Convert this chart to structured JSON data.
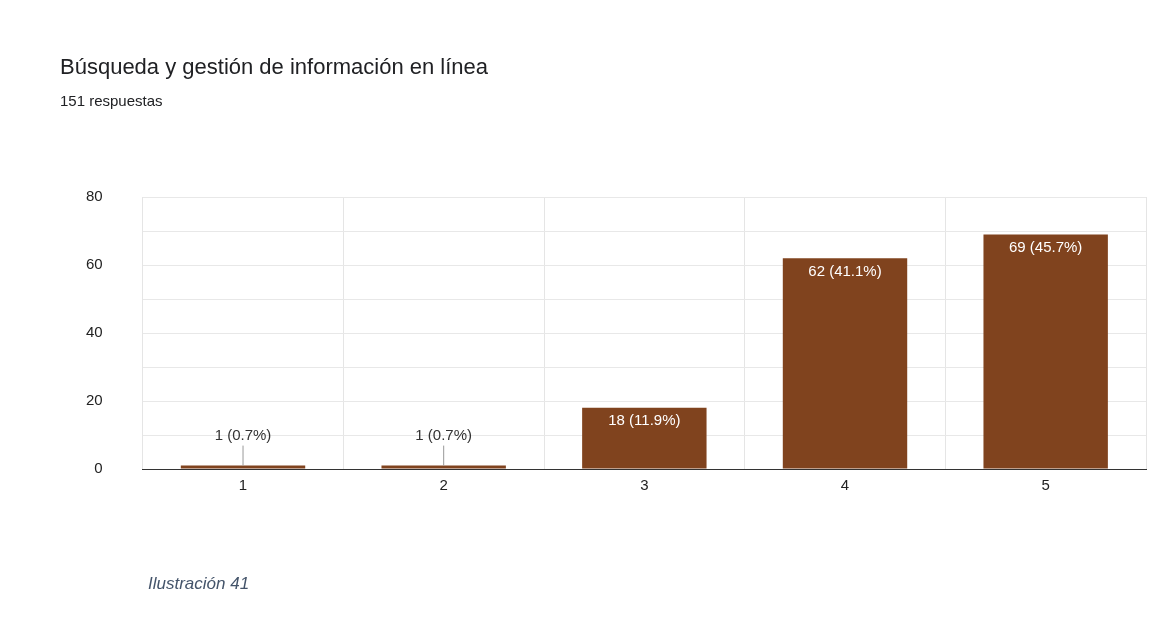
{
  "chart_data": {
    "type": "bar",
    "title": "Búsqueda y gestión de información en línea",
    "subtitle": "151 respuestas",
    "categories": [
      "1",
      "2",
      "3",
      "4",
      "5"
    ],
    "values": [
      1,
      1,
      18,
      62,
      69
    ],
    "value_labels": [
      "1 (0.7%)",
      "1 (0.7%)",
      "18 (11.9%)",
      "62 (41.1%)",
      "69 (45.7%)"
    ],
    "color": "#80431e",
    "ylim": [
      0,
      80
    ],
    "yticks": [
      0,
      {
        "value": 10,
        "label": null
      },
      20,
      {
        "value": 30,
        "label": null
      },
      40,
      {
        "value": 50,
        "label": null
      },
      60,
      {
        "value": 70,
        "label": null
      },
      80
    ],
    "grid": true,
    "legend": false,
    "annotations": [
      "Ilustración 41"
    ]
  }
}
